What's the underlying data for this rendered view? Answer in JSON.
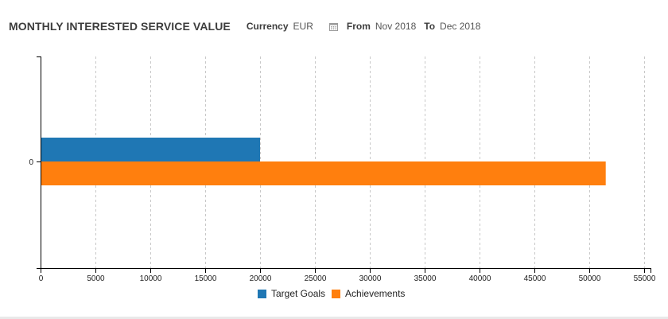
{
  "header": {
    "title": "MONTHLY INTERESTED SERVICE VALUE",
    "currency_label": "Currency",
    "currency_value": "EUR",
    "calendar_icon": "calendar-icon",
    "from_label": "From",
    "from_value": "Nov 2018",
    "to_label": "To",
    "to_value": "Dec 2018"
  },
  "colors": {
    "target_goals": "#1f77b4",
    "achievements": "#ff7f0e"
  },
  "chart_data": {
    "type": "bar",
    "orientation": "horizontal",
    "categories": [
      "0"
    ],
    "series": [
      {
        "name": "Target Goals",
        "values": [
          20000
        ]
      },
      {
        "name": "Achievements",
        "values": [
          51500
        ]
      }
    ],
    "xlim": [
      0,
      55000
    ],
    "xticks": [
      0,
      5000,
      10000,
      15000,
      20000,
      25000,
      30000,
      35000,
      40000,
      45000,
      50000,
      55000
    ],
    "grid": "vertical-dashed",
    "legend": "bottom-center"
  }
}
